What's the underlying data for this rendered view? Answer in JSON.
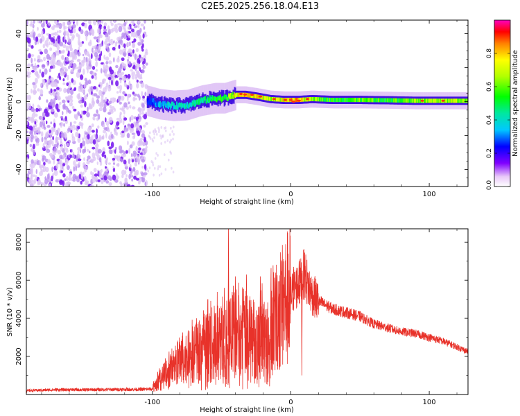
{
  "title": "C2E5.2025.256.18.04.E13",
  "chart_data": [
    {
      "type": "heatmap",
      "name": "spectrogram",
      "xlabel": "Height of straight line (km)",
      "ylabel": "Frequency (Hz)",
      "xlim": [
        -191,
        128
      ],
      "ylim": [
        -50,
        48
      ],
      "xticks": [
        "-100",
        "0",
        "100"
      ],
      "yticks": [
        "40",
        "20",
        "0",
        "-20",
        "-40"
      ],
      "colorbar": {
        "label": "Normalized spectral amplitude",
        "range": [
          0.0,
          1.0
        ],
        "ticks": [
          "0.0",
          "0.2",
          "0.4",
          "0.6",
          "0.8"
        ]
      },
      "noise_region_x": [
        -191,
        -104
      ],
      "signal_track": [
        {
          "x": -104,
          "freq": 0.5,
          "amp": 0.25
        },
        {
          "x": -95,
          "freq": -1.5,
          "amp": 0.35
        },
        {
          "x": -85,
          "freq": -2.5,
          "amp": 0.4
        },
        {
          "x": -75,
          "freq": -2.0,
          "amp": 0.4
        },
        {
          "x": -65,
          "freq": 0.5,
          "amp": 0.45
        },
        {
          "x": -55,
          "freq": 2.0,
          "amp": 0.5
        },
        {
          "x": -48,
          "freq": 2.0,
          "amp": 0.55
        },
        {
          "x": -40,
          "freq": 4.0,
          "amp": 0.75
        },
        {
          "x": -33,
          "freq": 4.0,
          "amp": 0.8
        },
        {
          "x": -25,
          "freq": 3.0,
          "amp": 0.75
        },
        {
          "x": -15,
          "freq": 1.5,
          "amp": 0.7
        },
        {
          "x": -5,
          "freq": 1.0,
          "amp": 0.75
        },
        {
          "x": 5,
          "freq": 1.0,
          "amp": 0.8
        },
        {
          "x": 15,
          "freq": 1.5,
          "amp": 0.65
        },
        {
          "x": 30,
          "freq": 1.0,
          "amp": 0.55
        },
        {
          "x": 50,
          "freq": 1.0,
          "amp": 0.6
        },
        {
          "x": 70,
          "freq": 0.8,
          "amp": 0.55
        },
        {
          "x": 90,
          "freq": 0.5,
          "amp": 0.65
        },
        {
          "x": 110,
          "freq": 0.5,
          "amp": 0.7
        },
        {
          "x": 128,
          "freq": 0.5,
          "amp": 0.65
        }
      ]
    },
    {
      "type": "line",
      "name": "snr",
      "xlabel": "Height of straight line (km)",
      "ylabel": "SNR (10 * v/v)",
      "xlim": [
        -191,
        128
      ],
      "ylim": [
        0,
        8700
      ],
      "xticks": [
        "-100",
        "0",
        "100"
      ],
      "yticks": [
        "8000",
        "6000",
        "4000",
        "2000"
      ],
      "color": "#e8322a",
      "series": [
        {
          "name": "SNR",
          "x": [
            -191,
            -170,
            -150,
            -130,
            -110,
            -100,
            -95,
            -90,
            -85,
            -80,
            -75,
            -70,
            -65,
            -60,
            -55,
            -50,
            -45,
            -40,
            -35,
            -30,
            -25,
            -20,
            -15,
            -10,
            -5,
            0,
            3,
            5,
            8,
            10,
            12,
            15,
            20,
            25,
            30,
            35,
            40,
            45,
            50,
            55,
            60,
            70,
            80,
            90,
            100,
            110,
            120,
            128
          ],
          "y": [
            200,
            250,
            250,
            260,
            270,
            280,
            700,
            1100,
            1400,
            1800,
            1900,
            2100,
            2300,
            2500,
            2700,
            2800,
            3100,
            3200,
            3300,
            3000,
            2900,
            3000,
            3200,
            4200,
            4800,
            5200,
            5600,
            5700,
            6000,
            6400,
            5800,
            5300,
            4900,
            4700,
            4500,
            4400,
            4300,
            4200,
            4100,
            3900,
            3700,
            3500,
            3300,
            3200,
            3000,
            2800,
            2500,
            2250
          ],
          "spikes": [
            {
              "x": -68,
              "y": 4000
            },
            {
              "x": -60,
              "y": 5000
            },
            {
              "x": -48,
              "y": 5600
            },
            {
              "x": -45,
              "y": 8700
            },
            {
              "x": -40,
              "y": 6200
            },
            {
              "x": -32,
              "y": 6300
            },
            {
              "x": -22,
              "y": 6200
            },
            {
              "x": 2,
              "y": 6700
            },
            {
              "x": 6,
              "y": 7000
            },
            {
              "x": 10,
              "y": 6600
            },
            {
              "x": 8,
              "y": 1000
            }
          ]
        }
      ]
    }
  ]
}
